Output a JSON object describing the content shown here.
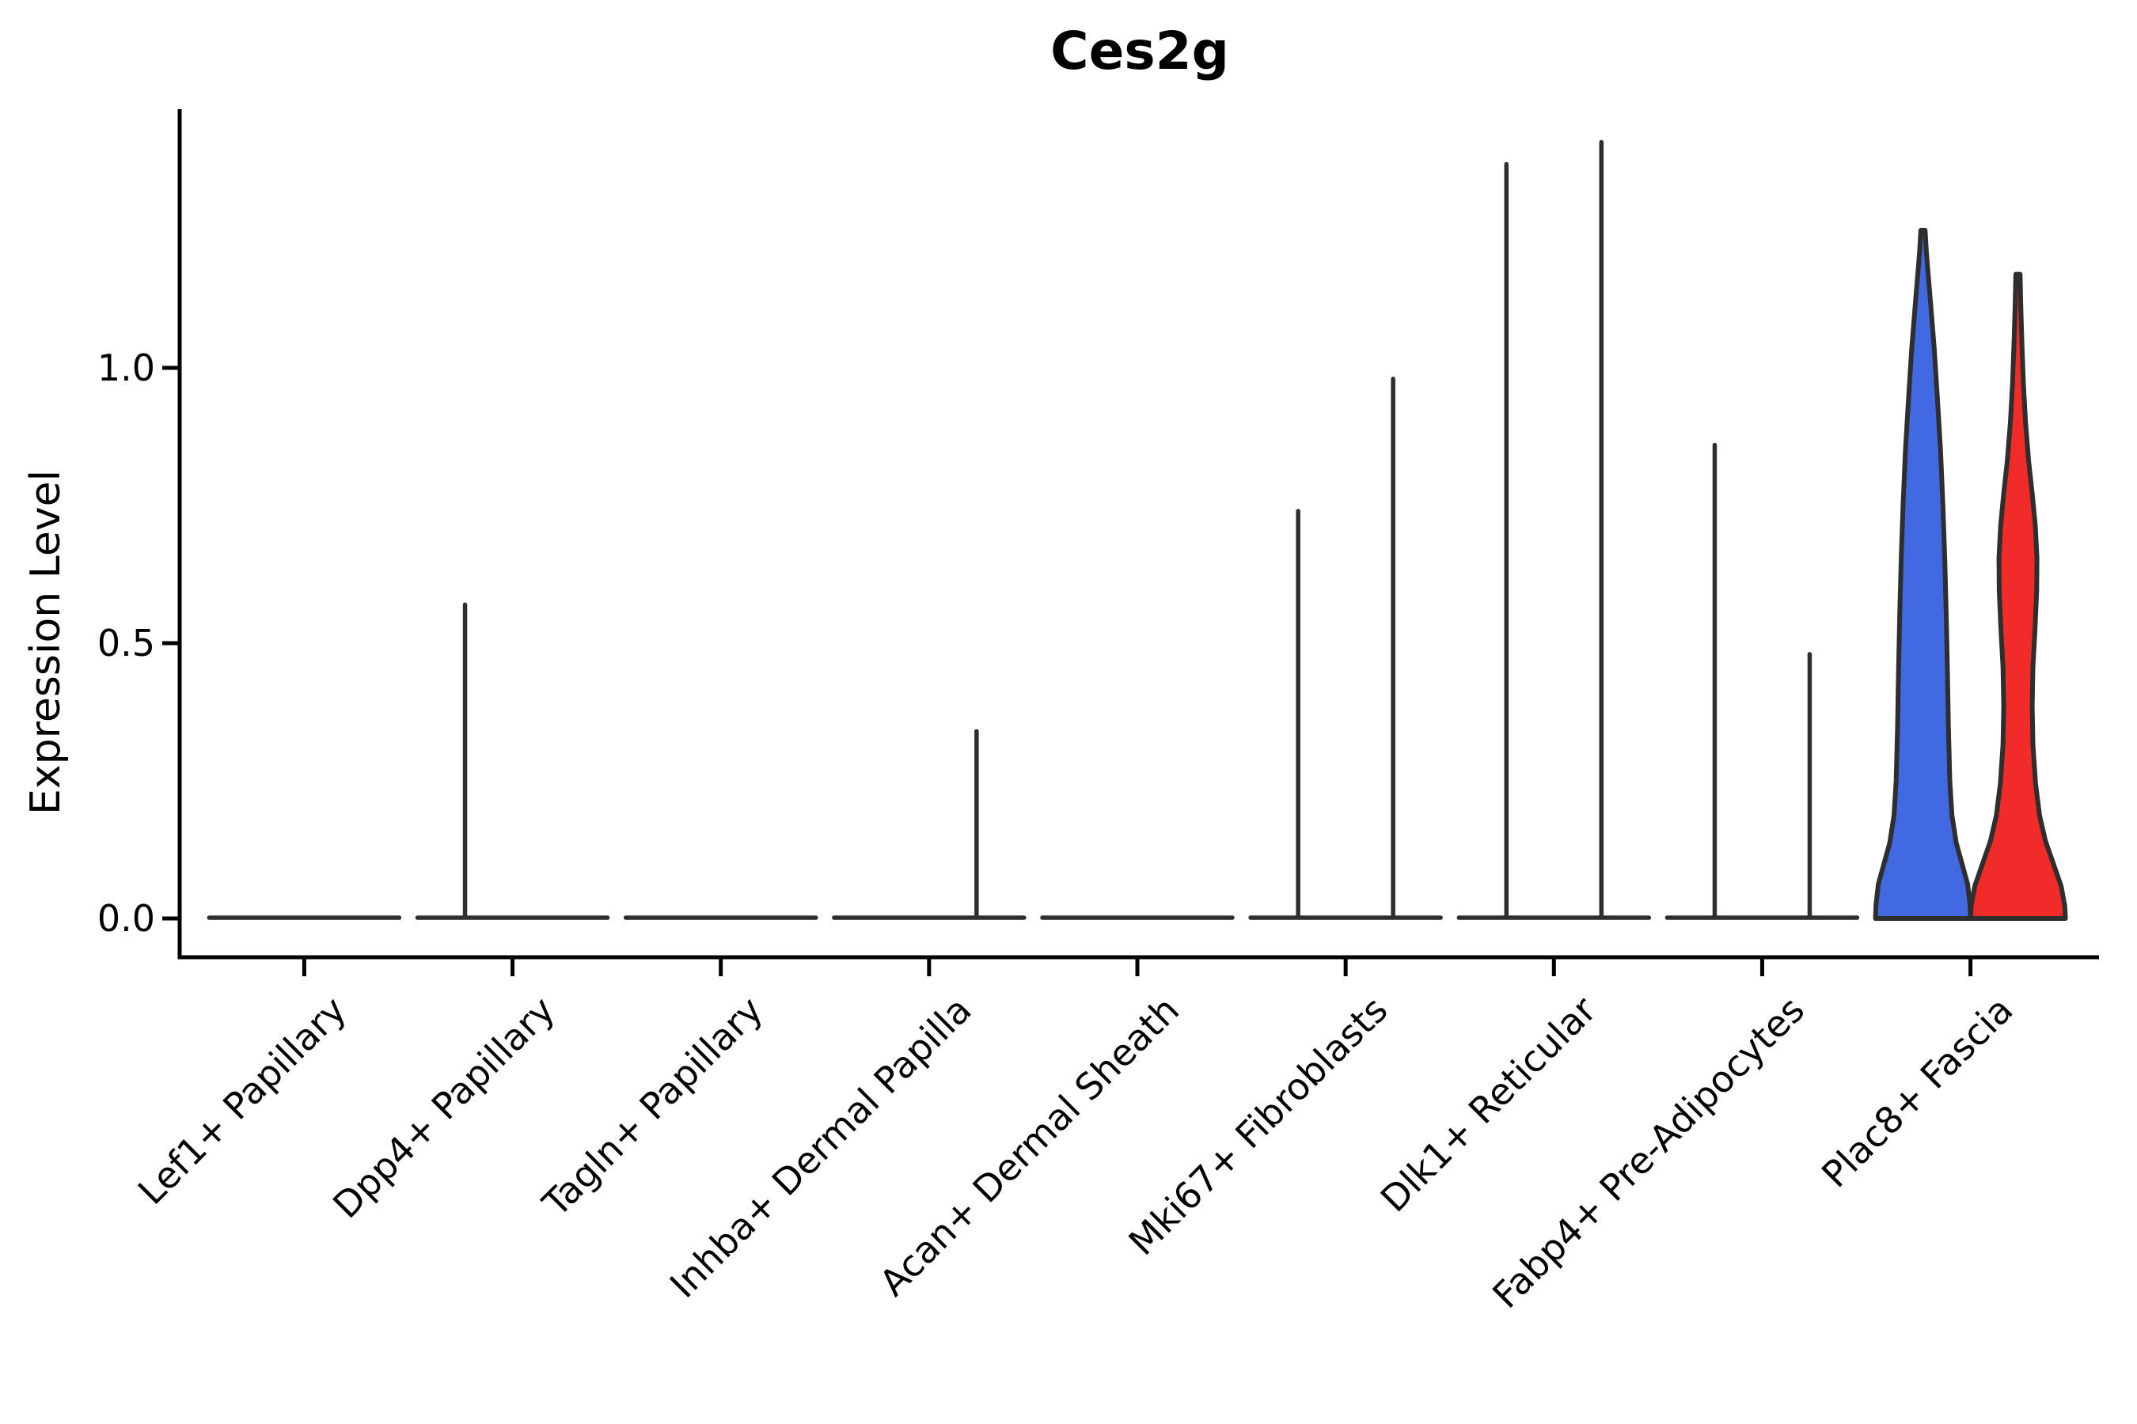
{
  "figure": {
    "title": "Ces2g",
    "ylabel": "Expression Level",
    "background": "#ffffff"
  },
  "chart_data": {
    "type": "violin",
    "title": "Ces2g",
    "xlabel": "",
    "ylabel": "Expression Level",
    "grid": false,
    "legend": "none",
    "ylim": [
      -0.07,
      1.46
    ],
    "yticks": [
      {
        "label": "0.0",
        "value": 0.0
      },
      {
        "label": "0.5",
        "value": 0.5
      },
      {
        "label": "1.0",
        "value": 1.0
      }
    ],
    "categories": [
      "Lef1+ Papillary",
      "Dpp4+ Papillary",
      "Tagln+ Papillary",
      "Inhba+ Dermal Papilla",
      "Acan+ Dermal Sheath",
      "Mki67+ Fibroblasts",
      "Dlk1+ Reticular",
      "Fabp4+ Pre-Adipocytes",
      "Plac8+ Fascia"
    ],
    "groups": [
      {
        "name": "group-1",
        "position": "left",
        "color": "#4169E1"
      },
      {
        "name": "group-2",
        "position": "right",
        "color": "#F02B28"
      }
    ],
    "outline_color": "#2e2e2e",
    "axis_color": "#000000",
    "series": [
      {
        "category": "Lef1+ Papillary",
        "violins": [
          {
            "group": 0,
            "shape": "flat",
            "max": 0.0
          },
          {
            "group": 1,
            "shape": "flat",
            "max": 0.0
          }
        ]
      },
      {
        "category": "Dpp4+ Papillary",
        "violins": [
          {
            "group": 0,
            "shape": "spike",
            "max": 0.57
          },
          {
            "group": 1,
            "shape": "flat",
            "max": 0.0
          }
        ]
      },
      {
        "category": "Tagln+ Papillary",
        "violins": [
          {
            "group": 0,
            "shape": "flat",
            "max": 0.0
          },
          {
            "group": 1,
            "shape": "flat",
            "max": 0.0
          }
        ]
      },
      {
        "category": "Inhba+ Dermal Papilla",
        "violins": [
          {
            "group": 0,
            "shape": "flat",
            "max": 0.0
          },
          {
            "group": 1,
            "shape": "spike",
            "max": 0.34
          }
        ]
      },
      {
        "category": "Acan+ Dermal Sheath",
        "violins": [
          {
            "group": 0,
            "shape": "flat",
            "max": 0.0
          },
          {
            "group": 1,
            "shape": "flat",
            "max": 0.0
          }
        ]
      },
      {
        "category": "Mki67+ Fibroblasts",
        "violins": [
          {
            "group": 0,
            "shape": "spike",
            "max": 0.74
          },
          {
            "group": 1,
            "shape": "spike",
            "max": 0.98
          }
        ]
      },
      {
        "category": "Dlk1+ Reticular",
        "violins": [
          {
            "group": 0,
            "shape": "spike",
            "max": 1.37
          },
          {
            "group": 1,
            "shape": "spike",
            "max": 1.41
          }
        ]
      },
      {
        "category": "Fabp4+ Pre-Adipocytes",
        "violins": [
          {
            "group": 0,
            "shape": "spike",
            "max": 0.86
          },
          {
            "group": 1,
            "shape": "spike",
            "max": 0.48
          }
        ]
      },
      {
        "category": "Plac8+ Fascia",
        "violins": [
          {
            "group": 0,
            "shape": "full",
            "max": 1.25,
            "profile": "blue"
          },
          {
            "group": 1,
            "shape": "full",
            "max": 1.17,
            "profile": "red"
          }
        ]
      }
    ],
    "profiles": {
      "blue": [
        [
          0,
          1.0
        ],
        [
          0.02,
          0.99
        ],
        [
          0.05,
          0.94
        ],
        [
          0.08,
          0.82
        ],
        [
          0.11,
          0.7
        ],
        [
          0.15,
          0.61
        ],
        [
          0.2,
          0.565
        ],
        [
          0.28,
          0.535
        ],
        [
          0.36,
          0.515
        ],
        [
          0.44,
          0.49
        ],
        [
          0.52,
          0.46
        ],
        [
          0.6,
          0.42
        ],
        [
          0.68,
          0.37
        ],
        [
          0.76,
          0.3
        ],
        [
          0.83,
          0.235
        ],
        [
          0.89,
          0.165
        ],
        [
          0.94,
          0.105
        ],
        [
          0.97,
          0.07
        ],
        [
          1,
          0.045
        ]
      ],
      "red": [
        [
          0,
          1.0
        ],
        [
          0.02,
          0.985
        ],
        [
          0.05,
          0.91
        ],
        [
          0.08,
          0.77
        ],
        [
          0.12,
          0.58
        ],
        [
          0.16,
          0.455
        ],
        [
          0.21,
          0.37
        ],
        [
          0.27,
          0.315
        ],
        [
          0.33,
          0.3
        ],
        [
          0.39,
          0.315
        ],
        [
          0.45,
          0.36
        ],
        [
          0.51,
          0.395
        ],
        [
          0.56,
          0.4
        ],
        [
          0.61,
          0.365
        ],
        [
          0.66,
          0.3
        ],
        [
          0.71,
          0.225
        ],
        [
          0.77,
          0.16
        ],
        [
          0.83,
          0.115
        ],
        [
          0.89,
          0.085
        ],
        [
          0.95,
          0.06
        ],
        [
          1,
          0.045
        ]
      ]
    }
  }
}
